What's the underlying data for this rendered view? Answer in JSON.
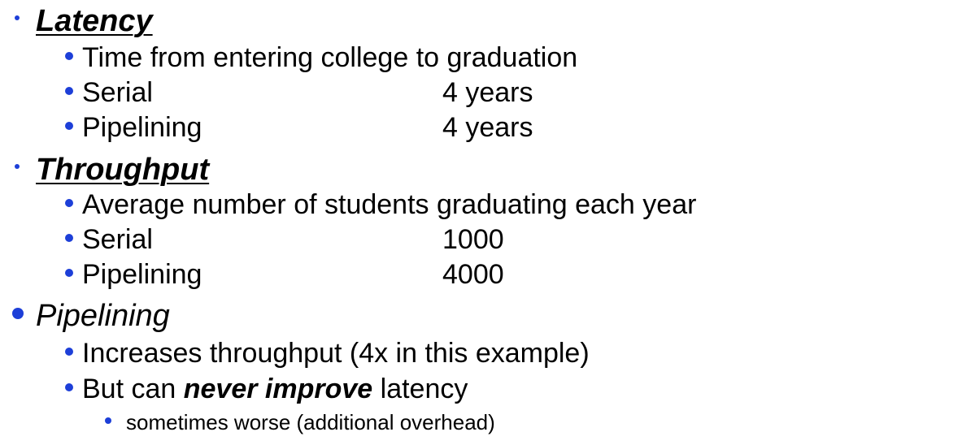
{
  "colors": {
    "bullet": "#1d3fd8",
    "text": "#000000",
    "background": "#ffffff"
  },
  "latency": {
    "heading": "Latency",
    "items": [
      {
        "label": "Time from entering college to graduation",
        "value": ""
      },
      {
        "label": "Serial",
        "value": "4 years"
      },
      {
        "label": "Pipelining",
        "value": "4 years"
      }
    ]
  },
  "throughput": {
    "heading": "Throughput",
    "items": [
      {
        "label": "Average number of students graduating each year",
        "value": ""
      },
      {
        "label": "Serial",
        "value": "1000"
      },
      {
        "label": "Pipelining",
        "value": "4000"
      }
    ]
  },
  "pipelining": {
    "heading": "Pipelining",
    "items": [
      {
        "label": "Increases throughput (4x in this example)"
      },
      {
        "prefix": "But can ",
        "emphasis": "never improve",
        "suffix": " latency"
      }
    ],
    "sub_items": [
      {
        "label": "sometimes worse (additional overhead)"
      }
    ]
  }
}
